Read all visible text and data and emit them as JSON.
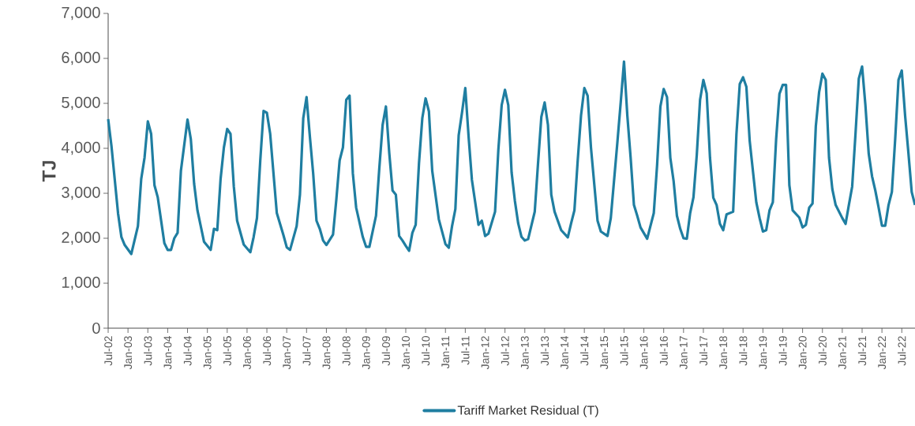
{
  "chart_data": {
    "type": "line",
    "ylabel": "TJ",
    "legend": "bottom",
    "line_style": "solid",
    "xlim": [
      "2002-07",
      "2022-11"
    ],
    "ylim": [
      0,
      7000
    ],
    "yticks": [
      0,
      {
        "value": 1000,
        "label": "1,000"
      },
      {
        "value": 2000,
        "label": "2,000"
      },
      {
        "value": 3000,
        "label": "3,000"
      },
      {
        "value": 4000,
        "label": "4,000"
      },
      {
        "value": 5000,
        "label": "5,000"
      },
      {
        "value": 6000,
        "label": "6,000"
      },
      {
        "value": 7000,
        "label": "7,000"
      }
    ],
    "xticks": [
      {
        "value": "2002-07",
        "label": "Jul-02"
      },
      {
        "value": "2003-01",
        "label": "Jan-03"
      },
      {
        "value": "2003-07",
        "label": "Jul-03"
      },
      {
        "value": "2004-01",
        "label": "Jan-04"
      },
      {
        "value": "2004-07",
        "label": "Jul-04"
      },
      {
        "value": "2005-01",
        "label": "Jan-05"
      },
      {
        "value": "2005-07",
        "label": "Jul-05"
      },
      {
        "value": "2006-01",
        "label": "Jan-06"
      },
      {
        "value": "2006-07",
        "label": "Jul-06"
      },
      {
        "value": "2007-01",
        "label": "Jan-07"
      },
      {
        "value": "2007-07",
        "label": "Jul-07"
      },
      {
        "value": "2008-01",
        "label": "Jan-08"
      },
      {
        "value": "2008-07",
        "label": "Jul-08"
      },
      {
        "value": "2009-01",
        "label": "Jan-09"
      },
      {
        "value": "2009-07",
        "label": "Jul-09"
      },
      {
        "value": "2010-01",
        "label": "Jan-10"
      },
      {
        "value": "2010-07",
        "label": "Jul-10"
      },
      {
        "value": "2011-01",
        "label": "Jan-11"
      },
      {
        "value": "2011-07",
        "label": "Jul-11"
      },
      {
        "value": "2012-01",
        "label": "Jan-12"
      },
      {
        "value": "2012-07",
        "label": "Jul-12"
      },
      {
        "value": "2013-01",
        "label": "Jan-13"
      },
      {
        "value": "2013-07",
        "label": "Jul-13"
      },
      {
        "value": "2014-01",
        "label": "Jan-14"
      },
      {
        "value": "2014-07",
        "label": "Jul-14"
      },
      {
        "value": "2015-01",
        "label": "Jan-15"
      },
      {
        "value": "2015-07",
        "label": "Jul-15"
      },
      {
        "value": "2016-01",
        "label": "Jan-16"
      },
      {
        "value": "2016-07",
        "label": "Jul-16"
      },
      {
        "value": "2017-01",
        "label": "Jan-17"
      },
      {
        "value": "2017-07",
        "label": "Jul-17"
      },
      {
        "value": "2018-01",
        "label": "Jan-18"
      },
      {
        "value": "2018-07",
        "label": "Jul-18"
      },
      {
        "value": "2019-01",
        "label": "Jan-19"
      },
      {
        "value": "2019-07",
        "label": "Jul-19"
      },
      {
        "value": "2020-01",
        "label": "Jan-20"
      },
      {
        "value": "2020-07",
        "label": "Jul-20"
      },
      {
        "value": "2021-01",
        "label": "Jan-21"
      },
      {
        "value": "2021-07",
        "label": "Jul-21"
      },
      {
        "value": "2022-01",
        "label": "Jan-22"
      },
      {
        "value": "2022-07",
        "label": "Jul-22"
      }
    ],
    "x": [
      "2002-07",
      "2002-08",
      "2002-10",
      "2002-11",
      "2002-12",
      "2003-02",
      "2003-04",
      "2003-05",
      "2003-06",
      "2003-07",
      "2003-08",
      "2003-09",
      "2003-10",
      "2003-12",
      "2004-01",
      "2004-02",
      "2004-03",
      "2004-04",
      "2004-05",
      "2004-07",
      "2004-08",
      "2004-09",
      "2004-10",
      "2004-12",
      "2005-02",
      "2005-03",
      "2005-04",
      "2005-05",
      "2005-06",
      "2005-07",
      "2005-08",
      "2005-09",
      "2005-10",
      "2005-12",
      "2006-02",
      "2006-03",
      "2006-04",
      "2006-05",
      "2006-06",
      "2006-07",
      "2006-08",
      "2006-10",
      "2006-12",
      "2007-01",
      "2007-02",
      "2007-04",
      "2007-05",
      "2007-06",
      "2007-07",
      "2007-08",
      "2007-09",
      "2007-10",
      "2007-11",
      "2007-12",
      "2008-01",
      "2008-03",
      "2008-04",
      "2008-05",
      "2008-06",
      "2008-07",
      "2008-08",
      "2008-09",
      "2008-10",
      "2008-12",
      "2009-01",
      "2009-02",
      "2009-04",
      "2009-05",
      "2009-06",
      "2009-07",
      "2009-08",
      "2009-09",
      "2009-10",
      "2009-11",
      "2009-12",
      "2010-01",
      "2010-02",
      "2010-03",
      "2010-04",
      "2010-05",
      "2010-06",
      "2010-07",
      "2010-08",
      "2010-09",
      "2010-11",
      "2011-01",
      "2011-02",
      "2011-03",
      "2011-04",
      "2011-05",
      "2011-06",
      "2011-07",
      "2011-08",
      "2011-09",
      "2011-11",
      "2011-12",
      "2012-01",
      "2012-02",
      "2012-04",
      "2012-05",
      "2012-06",
      "2012-07",
      "2012-08",
      "2012-09",
      "2012-10",
      "2012-11",
      "2012-12",
      "2013-01",
      "2013-02",
      "2013-04",
      "2013-05",
      "2013-06",
      "2013-07",
      "2013-08",
      "2013-09",
      "2013-10",
      "2013-12",
      "2014-02",
      "2014-03",
      "2014-04",
      "2014-05",
      "2014-06",
      "2014-07",
      "2014-08",
      "2014-09",
      "2014-11",
      "2014-12",
      "2015-02",
      "2015-03",
      "2015-05",
      "2015-06",
      "2015-07",
      "2015-08",
      "2015-09",
      "2015-10",
      "2015-11",
      "2015-12",
      "2016-02",
      "2016-04",
      "2016-05",
      "2016-06",
      "2016-07",
      "2016-08",
      "2016-09",
      "2016-10",
      "2016-11",
      "2016-12",
      "2017-01",
      "2017-02",
      "2017-03",
      "2017-04",
      "2017-05",
      "2017-06",
      "2017-07",
      "2017-08",
      "2017-09",
      "2017-10",
      "2017-11",
      "2017-12",
      "2018-01",
      "2018-02",
      "2018-04",
      "2018-05",
      "2018-06",
      "2018-07",
      "2018-08",
      "2018-09",
      "2018-11",
      "2018-12",
      "2019-01",
      "2019-02",
      "2019-03",
      "2019-04",
      "2019-05",
      "2019-06",
      "2019-07",
      "2019-08",
      "2019-09",
      "2019-10",
      "2019-12",
      "2020-01",
      "2020-02",
      "2020-03",
      "2020-04",
      "2020-05",
      "2020-06",
      "2020-07",
      "2020-08",
      "2020-09",
      "2020-10",
      "2020-11",
      "2021-01",
      "2021-02",
      "2021-03",
      "2021-04",
      "2021-05",
      "2021-06",
      "2021-07",
      "2021-08",
      "2021-09",
      "2021-10",
      "2021-11",
      "2021-12",
      "2022-01",
      "2022-02",
      "2022-03",
      "2022-04",
      "2022-05",
      "2022-06",
      "2022-07",
      "2022-08",
      "2022-09",
      "2022-10",
      "2022-11"
    ],
    "series": [
      {
        "name": "Tariff Market Residual (T)",
        "color": "#1f7ea1",
        "values": [
          4650,
          4050,
          2550,
          2030,
          1850,
          1650,
          2270,
          3320,
          3790,
          4600,
          4320,
          3180,
          2910,
          1890,
          1740,
          1740,
          2000,
          2120,
          3500,
          4640,
          4200,
          3210,
          2620,
          1920,
          1740,
          2210,
          2180,
          3320,
          4020,
          4430,
          4320,
          3150,
          2390,
          1860,
          1690,
          2030,
          2450,
          3730,
          4830,
          4790,
          4320,
          2560,
          2070,
          1800,
          1740,
          2270,
          2970,
          4670,
          5140,
          4260,
          3440,
          2390,
          2210,
          1950,
          1850,
          2080,
          2860,
          3730,
          4020,
          5080,
          5170,
          3440,
          2680,
          2030,
          1810,
          1810,
          2500,
          3560,
          4520,
          4930,
          3900,
          3060,
          2970,
          2050,
          1950,
          1830,
          1720,
          2120,
          2300,
          3670,
          4670,
          5110,
          4820,
          3500,
          2420,
          1870,
          1790,
          2270,
          2650,
          4290,
          4790,
          5340,
          4260,
          3300,
          2300,
          2390,
          2050,
          2100,
          2590,
          3970,
          4960,
          5300,
          4960,
          3470,
          2830,
          2330,
          2030,
          1950,
          1980,
          2590,
          3670,
          4700,
          5020,
          4520,
          2970,
          2590,
          2180,
          2020,
          2330,
          2620,
          3730,
          4730,
          5340,
          5170,
          4020,
          2390,
          2150,
          2050,
          2450,
          4140,
          5020,
          5930,
          4730,
          3790,
          2740,
          2500,
          2240,
          1990,
          2560,
          3620,
          4930,
          5320,
          5140,
          3790,
          3270,
          2500,
          2210,
          2000,
          1990,
          2560,
          2910,
          3850,
          5080,
          5520,
          5220,
          3790,
          2900,
          2740,
          2320,
          2180,
          2530,
          2590,
          4320,
          5430,
          5580,
          5370,
          4170,
          2800,
          2450,
          2150,
          2180,
          2620,
          2800,
          4200,
          5210,
          5410,
          5410,
          3180,
          2620,
          2460,
          2240,
          2300,
          2680,
          2770,
          4490,
          5250,
          5660,
          5520,
          3790,
          3090,
          2740,
          2450,
          2320,
          2740,
          3150,
          4320,
          5550,
          5820,
          4960,
          3880,
          3380,
          3060,
          2680,
          2280,
          2280,
          2740,
          3030,
          4200,
          5520,
          5730,
          4730,
          3900,
          3030,
          2740
        ]
      }
    ]
  }
}
